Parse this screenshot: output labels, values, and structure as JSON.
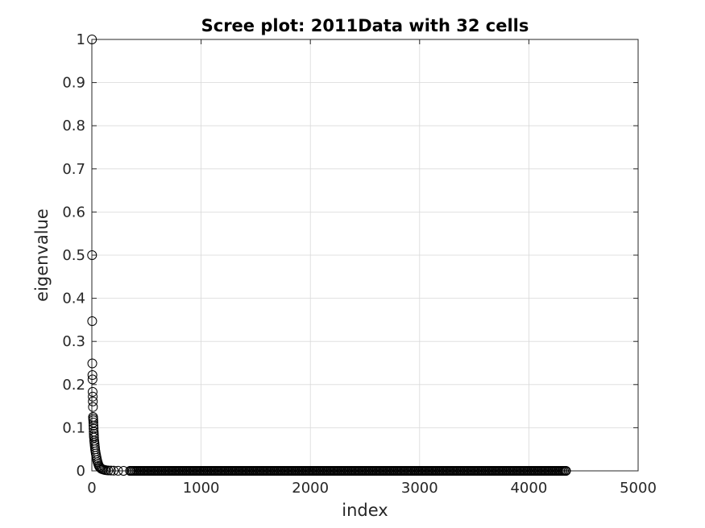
{
  "chart_data": {
    "type": "scatter",
    "title": "Scree plot: 2011Data with 32 cells",
    "xlabel": "index",
    "ylabel": "eigenvalue",
    "xlim": [
      0,
      5000
    ],
    "ylim": [
      0,
      1
    ],
    "x_ticks": [
      "0",
      "1000",
      "2000",
      "3000",
      "4000",
      "5000"
    ],
    "y_ticks": [
      "0",
      "0.1",
      "0.2",
      "0.3",
      "0.4",
      "0.5",
      "0.6",
      "0.7",
      "0.8",
      "0.9",
      "1"
    ],
    "grid": true,
    "marker": "open-circle",
    "colors": {
      "marker": "#000000",
      "grid": "#d9d9d9",
      "axes": "#262626",
      "background": "#ffffff"
    },
    "points": [
      [
        1,
        1.0
      ],
      [
        2,
        0.5
      ],
      [
        3,
        0.347
      ],
      [
        4,
        0.249
      ],
      [
        5,
        0.222
      ],
      [
        6,
        0.212
      ],
      [
        7,
        0.183
      ],
      [
        8,
        0.172
      ],
      [
        9,
        0.161
      ],
      [
        10,
        0.148
      ],
      [
        11,
        0.125
      ],
      [
        12,
        0.121
      ],
      [
        13,
        0.117
      ],
      [
        14,
        0.112
      ],
      [
        15,
        0.105
      ],
      [
        16,
        0.098
      ],
      [
        17,
        0.091
      ],
      [
        18,
        0.086
      ],
      [
        19,
        0.081
      ],
      [
        20,
        0.077
      ],
      [
        22,
        0.07
      ],
      [
        24,
        0.065
      ],
      [
        26,
        0.06
      ],
      [
        28,
        0.055
      ],
      [
        30,
        0.05
      ],
      [
        33,
        0.045
      ],
      [
        36,
        0.04
      ],
      [
        40,
        0.035
      ],
      [
        44,
        0.03
      ],
      [
        48,
        0.025
      ],
      [
        53,
        0.02
      ],
      [
        58,
        0.016
      ],
      [
        64,
        0.012
      ],
      [
        70,
        0.009
      ],
      [
        78,
        0.007
      ],
      [
        86,
        0.005
      ],
      [
        95,
        0.004
      ],
      [
        105,
        0.003
      ],
      [
        118,
        0.002
      ],
      [
        132,
        0.0015
      ],
      [
        150,
        0.001
      ],
      [
        175,
        0.0006
      ],
      [
        200,
        0.0004
      ],
      [
        240,
        0.0002
      ],
      [
        290,
        0.0001
      ],
      [
        350,
        5e-05
      ],
      [
        4340,
        0.0
      ]
    ],
    "tail": {
      "x_start": 350,
      "x_end": 4340,
      "step": 12,
      "value": 0.0
    }
  }
}
